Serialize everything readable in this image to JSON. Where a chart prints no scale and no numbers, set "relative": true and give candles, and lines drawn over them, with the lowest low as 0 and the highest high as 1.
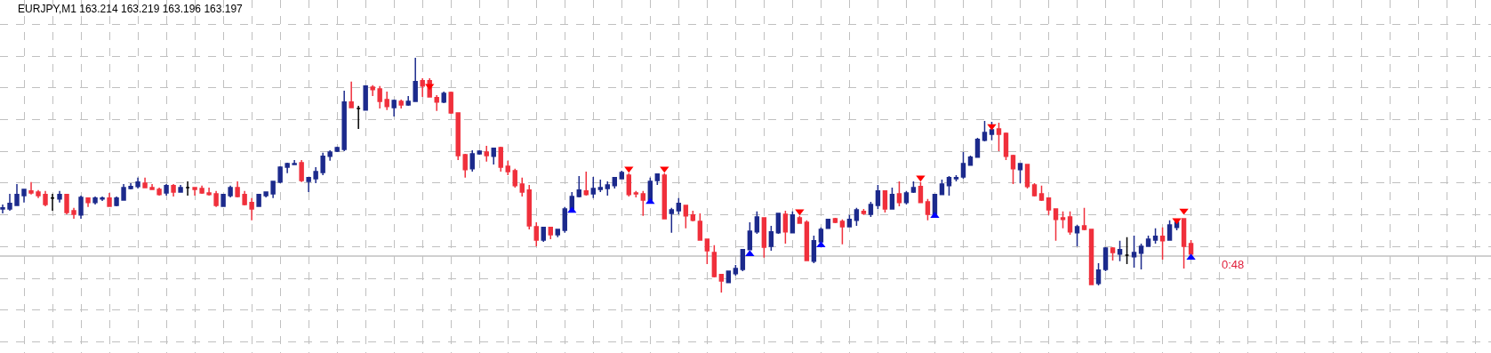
{
  "chart_data": {
    "type": "candlestick",
    "title": "EURJPY,M1 163.214 163.219 163.196 163.197",
    "relative": true,
    "grid": true,
    "categories": [
      null,
      null,
      null,
      null,
      null,
      null,
      null,
      null,
      null,
      null,
      null,
      null,
      null,
      null,
      null,
      null,
      null,
      null,
      null,
      null,
      null,
      null,
      null,
      null,
      null,
      null,
      null,
      null,
      null,
      null,
      null,
      null,
      null,
      null,
      null,
      null,
      null,
      null,
      null,
      null,
      null,
      null,
      null,
      null,
      null,
      null,
      null,
      null,
      null,
      null,
      null,
      null,
      null,
      null,
      null,
      null,
      null,
      null,
      null,
      null,
      null,
      null,
      null,
      null,
      null,
      null,
      null,
      null,
      null,
      null,
      null,
      null,
      null,
      null,
      null,
      null,
      null,
      null,
      null,
      null,
      null,
      null,
      null,
      null,
      null,
      null,
      null,
      null,
      null,
      null,
      null,
      null,
      null,
      null,
      null,
      null,
      null,
      null,
      null,
      null,
      null,
      null,
      null,
      null,
      null,
      null,
      null,
      null,
      null,
      null,
      null,
      null,
      null,
      null,
      null,
      null,
      null,
      null,
      null,
      null,
      null,
      null,
      null,
      null,
      null,
      null,
      null,
      null,
      null,
      null,
      null,
      null,
      null,
      null,
      null,
      null,
      null,
      null,
      null,
      null,
      null,
      null,
      null,
      null,
      null,
      null,
      null,
      null,
      null,
      null,
      null,
      null,
      null,
      null,
      null,
      null,
      null,
      null,
      null,
      null,
      null,
      null,
      null,
      null,
      null,
      null,
      null,
      null
    ],
    "ohlc": [
      [
        0.356,
        0.375,
        0.337,
        0.36
      ],
      [
        0.356,
        0.42,
        0.348,
        0.379
      ],
      [
        0.371,
        0.462,
        0.371,
        0.417
      ],
      [
        0.413,
        0.439,
        0.383,
        0.439
      ],
      [
        0.432,
        0.47,
        0.417,
        0.424
      ],
      [
        0.428,
        0.436,
        0.402,
        0.413
      ],
      [
        0.417,
        0.432,
        0.367,
        0.375
      ],
      [
        0.402,
        0.42,
        0.348,
        0.402
      ],
      [
        0.398,
        0.432,
        0.383,
        0.417
      ],
      [
        0.417,
        0.42,
        0.333,
        0.341
      ],
      [
        0.348,
        0.36,
        0.314,
        0.333
      ],
      [
        0.33,
        0.413,
        0.314,
        0.405
      ],
      [
        0.402,
        0.405,
        0.364,
        0.383
      ],
      [
        0.383,
        0.409,
        0.375,
        0.402
      ],
      [
        0.398,
        0.409,
        0.39,
        0.402
      ],
      [
        0.402,
        0.424,
        0.367,
        0.367
      ],
      [
        0.371,
        0.409,
        0.367,
        0.402
      ],
      [
        0.394,
        0.462,
        0.394,
        0.447
      ],
      [
        0.443,
        0.466,
        0.439,
        0.451
      ],
      [
        0.451,
        0.489,
        0.443,
        0.47
      ],
      [
        0.466,
        0.489,
        0.447,
        0.447
      ],
      [
        0.447,
        0.462,
        0.436,
        0.439
      ],
      [
        0.439,
        0.447,
        0.413,
        0.417
      ],
      [
        0.424,
        0.462,
        0.413,
        0.455
      ],
      [
        0.455,
        0.462,
        0.409,
        0.428
      ],
      [
        0.428,
        0.458,
        0.428,
        0.447
      ],
      [
        0.447,
        0.473,
        0.413,
        0.447
      ],
      [
        0.447,
        0.447,
        0.413,
        0.439
      ],
      [
        0.443,
        0.455,
        0.42,
        0.424
      ],
      [
        0.424,
        0.447,
        0.413,
        0.417
      ],
      [
        0.42,
        0.432,
        0.364,
        0.371
      ],
      [
        0.367,
        0.417,
        0.367,
        0.417
      ],
      [
        0.413,
        0.455,
        0.405,
        0.447
      ],
      [
        0.447,
        0.473,
        0.405,
        0.409
      ],
      [
        0.417,
        0.432,
        0.371,
        0.375
      ],
      [
        0.383,
        0.402,
        0.307,
        0.356
      ],
      [
        0.367,
        0.417,
        0.367,
        0.417
      ],
      [
        0.413,
        0.428,
        0.405,
        0.428
      ],
      [
        0.42,
        0.473,
        0.402,
        0.473
      ],
      [
        0.47,
        0.538,
        0.466,
        0.534
      ],
      [
        0.534,
        0.553,
        0.508,
        0.549
      ],
      [
        0.545,
        0.564,
        0.545,
        0.549
      ],
      [
        0.553,
        0.564,
        0.47,
        0.477
      ],
      [
        0.473,
        0.492,
        0.428,
        0.489
      ],
      [
        0.485,
        0.534,
        0.466,
        0.515
      ],
      [
        0.511,
        0.595,
        0.5,
        0.58
      ],
      [
        0.58,
        0.606,
        0.561,
        0.598
      ],
      [
        0.602,
        0.621,
        0.598,
        0.617
      ],
      [
        0.61,
        0.86,
        0.602,
        0.811
      ],
      [
        0.811,
        0.898,
        0.788,
        0.788
      ],
      [
        0.784,
        0.795,
        0.697,
        0.784
      ],
      [
        0.777,
        0.879,
        0.777,
        0.879
      ],
      [
        0.875,
        0.883,
        0.837,
        0.864
      ],
      [
        0.867,
        0.879,
        0.784,
        0.814
      ],
      [
        0.822,
        0.856,
        0.777,
        0.792
      ],
      [
        0.788,
        0.822,
        0.75,
        0.818
      ],
      [
        0.814,
        0.822,
        0.784,
        0.799
      ],
      [
        0.799,
        0.837,
        0.795,
        0.814
      ],
      [
        0.814,
        1,
        0.814,
        0.898
      ],
      [
        0.902,
        0.913,
        0.833,
        0.879
      ],
      [
        0.902,
        0.913,
        0.83,
        0.833
      ],
      [
        0.83,
        0.841,
        0.773,
        0.811
      ],
      [
        0.811,
        0.856,
        0.807,
        0.848
      ],
      [
        0.852,
        0.856,
        0.761,
        0.765
      ],
      [
        0.765,
        0.765,
        0.564,
        0.583
      ],
      [
        0.587,
        0.591,
        0.489,
        0.523
      ],
      [
        0.527,
        0.606,
        0.515,
        0.591
      ],
      [
        0.591,
        0.606,
        0.587,
        0.602
      ],
      [
        0.598,
        0.625,
        0.557,
        0.583
      ],
      [
        0.58,
        0.617,
        0.545,
        0.614
      ],
      [
        0.617,
        0.621,
        0.515,
        0.534
      ],
      [
        0.538,
        0.561,
        0.5,
        0.515
      ],
      [
        0.519,
        0.527,
        0.447,
        0.455
      ],
      [
        0.462,
        0.489,
        0.409,
        0.428
      ],
      [
        0.436,
        0.458,
        0.269,
        0.284
      ],
      [
        0.28,
        0.299,
        0.197,
        0.223
      ],
      [
        0.223,
        0.28,
        0.216,
        0.277
      ],
      [
        0.277,
        0.28,
        0.227,
        0.246
      ],
      [
        0.246,
        0.269,
        0.235,
        0.269
      ],
      [
        0.265,
        0.364,
        0.254,
        0.356
      ],
      [
        0.356,
        0.428,
        0.356,
        0.409
      ],
      [
        0.409,
        0.496,
        0.405,
        0.436
      ],
      [
        0.432,
        0.515,
        0.413,
        0.417
      ],
      [
        0.42,
        0.492,
        0.402,
        0.443
      ],
      [
        0.439,
        0.481,
        0.428,
        0.447
      ],
      [
        0.443,
        0.473,
        0.413,
        0.458
      ],
      [
        0.455,
        0.492,
        0.443,
        0.489
      ],
      [
        0.485,
        0.519,
        0.485,
        0.511
      ],
      [
        0.5,
        0.508,
        0.409,
        0.417
      ],
      [
        0.424,
        0.432,
        0.405,
        0.42
      ],
      [
        0.42,
        0.432,
        0.326,
        0.394
      ],
      [
        0.394,
        0.489,
        0.394,
        0.473
      ],
      [
        0.477,
        0.504,
        0.458,
        0.504
      ],
      [
        0.5,
        0.508,
        0.311,
        0.314
      ],
      [
        0.337,
        0.36,
        0.254,
        0.352
      ],
      [
        0.348,
        0.402,
        0.333,
        0.379
      ],
      [
        0.371,
        0.371,
        0.273,
        0.326
      ],
      [
        0.33,
        0.348,
        0.303,
        0.307
      ],
      [
        0.303,
        0.337,
        0.223,
        0.223
      ],
      [
        0.227,
        0.227,
        0.121,
        0.178
      ],
      [
        0.17,
        0.201,
        0.064,
        0.068
      ],
      [
        0.076,
        0.076,
        0,
        0.049
      ],
      [
        0.042,
        0.091,
        0.042,
        0.091
      ],
      [
        0.08,
        0.117,
        0.072,
        0.102
      ],
      [
        0.098,
        0.182,
        0.091,
        0.182
      ],
      [
        0.182,
        0.299,
        0.182,
        0.261
      ],
      [
        0.258,
        0.345,
        0.25,
        0.322
      ],
      [
        0.318,
        0.318,
        0.148,
        0.193
      ],
      [
        0.197,
        0.284,
        0.178,
        0.258
      ],
      [
        0.254,
        0.337,
        0.25,
        0.337
      ],
      [
        0.333,
        0.348,
        0.208,
        0.258
      ],
      [
        0.254,
        0.345,
        0.254,
        0.33
      ],
      [
        0.318,
        0.326,
        0.295,
        0.295
      ],
      [
        0.299,
        0.307,
        0.136,
        0.136
      ],
      [
        0.133,
        0.242,
        0.125,
        0.22
      ],
      [
        0.216,
        0.277,
        0.216,
        0.269
      ],
      [
        0.273,
        0.311,
        0.273,
        0.311
      ],
      [
        0.314,
        0.318,
        0.295,
        0.299
      ],
      [
        0.303,
        0.311,
        0.205,
        0.28
      ],
      [
        0.28,
        0.33,
        0.28,
        0.311
      ],
      [
        0.307,
        0.36,
        0.284,
        0.352
      ],
      [
        0.345,
        0.356,
        0.33,
        0.337
      ],
      [
        0.333,
        0.386,
        0.322,
        0.375
      ],
      [
        0.371,
        0.458,
        0.356,
        0.432
      ],
      [
        0.432,
        0.432,
        0.341,
        0.356
      ],
      [
        0.356,
        0.447,
        0.356,
        0.417
      ],
      [
        0.42,
        0.473,
        0.367,
        0.383
      ],
      [
        0.383,
        0.432,
        0.375,
        0.424
      ],
      [
        0.428,
        0.473,
        0.424,
        0.447
      ],
      [
        0.451,
        0.47,
        0.383,
        0.383
      ],
      [
        0.386,
        0.398,
        0.307,
        0.333
      ],
      [
        0.333,
        0.417,
        0.333,
        0.417
      ],
      [
        0.417,
        0.481,
        0.417,
        0.462
      ],
      [
        0.455,
        0.496,
        0.413,
        0.489
      ],
      [
        0.485,
        0.5,
        0.473,
        0.489
      ],
      [
        0.492,
        0.598,
        0.485,
        0.549
      ],
      [
        0.542,
        0.583,
        0.542,
        0.576
      ],
      [
        0.576,
        0.659,
        0.576,
        0.652
      ],
      [
        0.648,
        0.731,
        0.644,
        0.682
      ],
      [
        0.674,
        0.727,
        0.648,
        0.693
      ],
      [
        0.697,
        0.723,
        0.602,
        0.674
      ],
      [
        0.678,
        0.682,
        0.564,
        0.58
      ],
      [
        0.583,
        0.587,
        0.462,
        0.527
      ],
      [
        0.523,
        0.549,
        0.466,
        0.549
      ],
      [
        0.545,
        0.545,
        0.443,
        0.451
      ],
      [
        0.458,
        0.466,
        0.409,
        0.413
      ],
      [
        0.42,
        0.455,
        0.39,
        0.394
      ],
      [
        0.402,
        0.402,
        0.33,
        0.352
      ],
      [
        0.356,
        0.356,
        0.22,
        0.311
      ],
      [
        0.318,
        0.345,
        0.273,
        0.311
      ],
      [
        0.322,
        0.345,
        0.246,
        0.258
      ],
      [
        0.254,
        0.288,
        0.197,
        0.28
      ],
      [
        0.284,
        0.36,
        0.265,
        0.269
      ],
      [
        0.269,
        0.269,
        0.034,
        0.034
      ],
      [
        0.038,
        0.125,
        0.03,
        0.095
      ],
      [
        0.098,
        0.193,
        0.091,
        0.189
      ],
      [
        0.189,
        0.193,
        0.136,
        0.17
      ],
      [
        0.163,
        0.22,
        0.133,
        0.182
      ],
      [
        0.159,
        0.235,
        0.121,
        0.159
      ],
      [
        0.152,
        0.242,
        0.106,
        0.17
      ],
      [
        0.167,
        0.208,
        0.098,
        0.197
      ],
      [
        0.197,
        0.242,
        0.197,
        0.227
      ],
      [
        0.223,
        0.273,
        0.208,
        0.239
      ],
      [
        0.239,
        0.277,
        0.14,
        0.22
      ],
      [
        0.223,
        0.307,
        0.22,
        0.288
      ],
      [
        0.277,
        0.299,
        0.265,
        0.299
      ],
      [
        0.314,
        0.314,
        0.102,
        0.197
      ],
      [
        0.208,
        0.223,
        0.163,
        0.163
      ]
    ],
    "colors": [
      "#1c2a8c",
      "#1c2a8c",
      "#1c2a8c",
      "#1c2a8c",
      "#f0303c",
      "#f0303c",
      "#f0303c",
      "#000000",
      "#1c2a8c",
      "#f0303c",
      "#f0303c",
      "#1c2a8c",
      "#f0303c",
      "#1c2a8c",
      "#1c2a8c",
      "#f0303c",
      "#1c2a8c",
      "#1c2a8c",
      "#1c2a8c",
      "#1c2a8c",
      "#f0303c",
      "#f0303c",
      "#f0303c",
      "#1c2a8c",
      "#f0303c",
      "#1c2a8c",
      "#000000",
      "#f0303c",
      "#f0303c",
      "#f0303c",
      "#f0303c",
      "#1c2a8c",
      "#1c2a8c",
      "#f0303c",
      "#f0303c",
      "#f0303c",
      "#1c2a8c",
      "#1c2a8c",
      "#1c2a8c",
      "#1c2a8c",
      "#1c2a8c",
      "#1c2a8c",
      "#f0303c",
      "#1c2a8c",
      "#1c2a8c",
      "#1c2a8c",
      "#1c2a8c",
      "#1c2a8c",
      "#1c2a8c",
      "#f0303c",
      "#000000",
      "#1c2a8c",
      "#f0303c",
      "#f0303c",
      "#f0303c",
      "#1c2a8c",
      "#f0303c",
      "#1c2a8c",
      "#1c2a8c",
      "#f0303c",
      "#f0303c",
      "#f0303c",
      "#1c2a8c",
      "#f0303c",
      "#f0303c",
      "#f0303c",
      "#1c2a8c",
      "#1c2a8c",
      "#f0303c",
      "#1c2a8c",
      "#f0303c",
      "#f0303c",
      "#f0303c",
      "#f0303c",
      "#f0303c",
      "#f0303c",
      "#1c2a8c",
      "#f0303c",
      "#1c2a8c",
      "#1c2a8c",
      "#1c2a8c",
      "#1c2a8c",
      "#f0303c",
      "#1c2a8c",
      "#1c2a8c",
      "#1c2a8c",
      "#1c2a8c",
      "#1c2a8c",
      "#f0303c",
      "#f0303c",
      "#f0303c",
      "#1c2a8c",
      "#1c2a8c",
      "#f0303c",
      "#1c2a8c",
      "#1c2a8c",
      "#f0303c",
      "#f0303c",
      "#f0303c",
      "#f0303c",
      "#f0303c",
      "#f0303c",
      "#1c2a8c",
      "#1c2a8c",
      "#1c2a8c",
      "#1c2a8c",
      "#1c2a8c",
      "#f0303c",
      "#1c2a8c",
      "#1c2a8c",
      "#f0303c",
      "#1c2a8c",
      "#f0303c",
      "#f0303c",
      "#1c2a8c",
      "#1c2a8c",
      "#1c2a8c",
      "#f0303c",
      "#f0303c",
      "#1c2a8c",
      "#1c2a8c",
      "#f0303c",
      "#1c2a8c",
      "#1c2a8c",
      "#f0303c",
      "#1c2a8c",
      "#f0303c",
      "#1c2a8c",
      "#1c2a8c",
      "#f0303c",
      "#f0303c",
      "#1c2a8c",
      "#1c2a8c",
      "#1c2a8c",
      "#1c2a8c",
      "#1c2a8c",
      "#1c2a8c",
      "#1c2a8c",
      "#1c2a8c",
      "#1c2a8c",
      "#f0303c",
      "#f0303c",
      "#f0303c",
      "#1c2a8c",
      "#f0303c",
      "#f0303c",
      "#f0303c",
      "#f0303c",
      "#f0303c",
      "#f0303c",
      "#f0303c",
      "#1c2a8c",
      "#f0303c",
      "#f0303c",
      "#1c2a8c",
      "#1c2a8c",
      "#f0303c",
      "#1c2a8c",
      "#000000",
      "#1c2a8c",
      "#1c2a8c",
      "#1c2a8c",
      "#1c2a8c",
      "#f0303c",
      "#1c2a8c",
      "#1c2a8c",
      "#f0303c",
      "#f0303c"
    ],
    "series": [
      {
        "type": "scatter",
        "color": "#ff0000",
        "marker": "triangle",
        "values": [
          null,
          null,
          null,
          null,
          null,
          null,
          null,
          null,
          null,
          null,
          null,
          null,
          null,
          null,
          null,
          null,
          null,
          null,
          null,
          null,
          null,
          null,
          null,
          null,
          null,
          null,
          null,
          null,
          null,
          null,
          null,
          null,
          null,
          null,
          null,
          null,
          null,
          null,
          null,
          null,
          null,
          null,
          null,
          null,
          null,
          null,
          null,
          null,
          null,
          null,
          null,
          null,
          null,
          null,
          null,
          null,
          null,
          null,
          null,
          null,
          0.879,
          null,
          null,
          null,
          null,
          null,
          null,
          null,
          null,
          null,
          null,
          null,
          null,
          null,
          null,
          null,
          null,
          null,
          null,
          null,
          null,
          null,
          null,
          null,
          null,
          null,
          null,
          null,
          0.527,
          null,
          null,
          null,
          null,
          0.527,
          null,
          null,
          null,
          null,
          null,
          null,
          null,
          null,
          null,
          null,
          null,
          null,
          null,
          null,
          null,
          null,
          null,
          null,
          0.345,
          null,
          null,
          null,
          null,
          null,
          null,
          null,
          null,
          null,
          null,
          null,
          null,
          null,
          null,
          null,
          null,
          0.489,
          null,
          null,
          null,
          null,
          null,
          null,
          null,
          null,
          null,
          0.708,
          null,
          null,
          null,
          null,
          null,
          null,
          null,
          null,
          null,
          null,
          null,
          null,
          null,
          null,
          null,
          null,
          null,
          null,
          null,
          null,
          null,
          null,
          null,
          null,
          null,
          0.307,
          0.348,
          null
        ]
      },
      {
        "type": "scatter",
        "color": "#0000ff",
        "marker": "triangle",
        "values": [
          null,
          null,
          null,
          null,
          null,
          null,
          null,
          null,
          null,
          null,
          null,
          null,
          null,
          null,
          null,
          null,
          null,
          null,
          null,
          null,
          null,
          null,
          null,
          null,
          null,
          null,
          null,
          null,
          null,
          null,
          null,
          null,
          null,
          null,
          null,
          null,
          null,
          null,
          null,
          null,
          null,
          null,
          null,
          null,
          null,
          null,
          null,
          null,
          null,
          null,
          null,
          null,
          null,
          null,
          null,
          null,
          null,
          null,
          null,
          null,
          null,
          null,
          null,
          null,
          null,
          null,
          null,
          null,
          null,
          null,
          null,
          null,
          null,
          null,
          null,
          null,
          null,
          null,
          null,
          null,
          0.348,
          null,
          null,
          null,
          null,
          null,
          null,
          null,
          null,
          null,
          null,
          0.386,
          null,
          null,
          null,
          null,
          null,
          null,
          null,
          null,
          null,
          null,
          null,
          null,
          null,
          0.163,
          null,
          null,
          null,
          null,
          null,
          null,
          null,
          null,
          null,
          0.201,
          null,
          null,
          null,
          null,
          null,
          null,
          null,
          null,
          null,
          null,
          null,
          null,
          null,
          null,
          null,
          0.326,
          null,
          null,
          null,
          null,
          null,
          null,
          null,
          null,
          null,
          null,
          null,
          null,
          null,
          null,
          null,
          null,
          null,
          null,
          null,
          null,
          null,
          null,
          null,
          null,
          null,
          null,
          null,
          null,
          null,
          null,
          null,
          null,
          null,
          null,
          null,
          0.148
        ]
      }
    ],
    "ref_lines": [
      {
        "axis": "y",
        "value": 0.155,
        "color": "#c0c0c0"
      }
    ],
    "annotations": [
      "0:48"
    ]
  }
}
